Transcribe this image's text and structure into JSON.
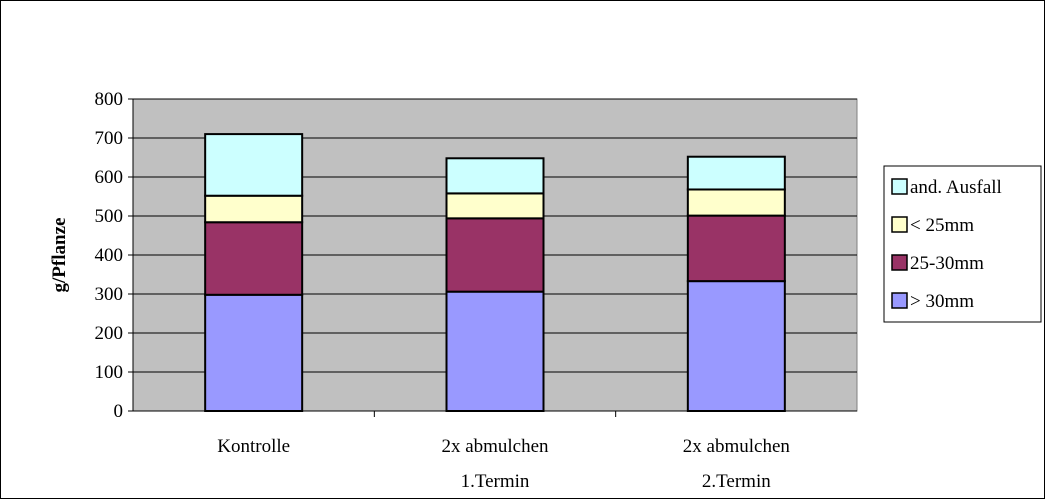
{
  "chart_data": {
    "type": "bar",
    "stacked": true,
    "title": "",
    "xlabel": "",
    "ylabel": "g/Pflanze",
    "ylim": [
      0,
      800
    ],
    "yticks": [
      0,
      100,
      200,
      300,
      400,
      500,
      600,
      700,
      800
    ],
    "grid": true,
    "legend_position": "right",
    "categories": [
      [
        "Kontrolle"
      ],
      [
        "2x abmulchen",
        "1.Termin"
      ],
      [
        "2x abmulchen",
        "2.Termin"
      ]
    ],
    "series": [
      {
        "name": "> 30mm",
        "color": "#9999ff",
        "values": [
          298,
          306,
          333
        ]
      },
      {
        "name": "25-30mm",
        "color": "#993366",
        "values": [
          186,
          188,
          168
        ]
      },
      {
        "name": "< 25mm",
        "color": "#ffffcc",
        "values": [
          68,
          64,
          67
        ]
      },
      {
        "name": "and. Ausfall",
        "color": "#ccffff",
        "values": [
          158,
          90,
          84
        ]
      }
    ],
    "legend_order": [
      "and. Ausfall",
      "< 25mm",
      "25-30mm",
      "> 30mm"
    ],
    "plot_background": "#c0c0c0"
  }
}
